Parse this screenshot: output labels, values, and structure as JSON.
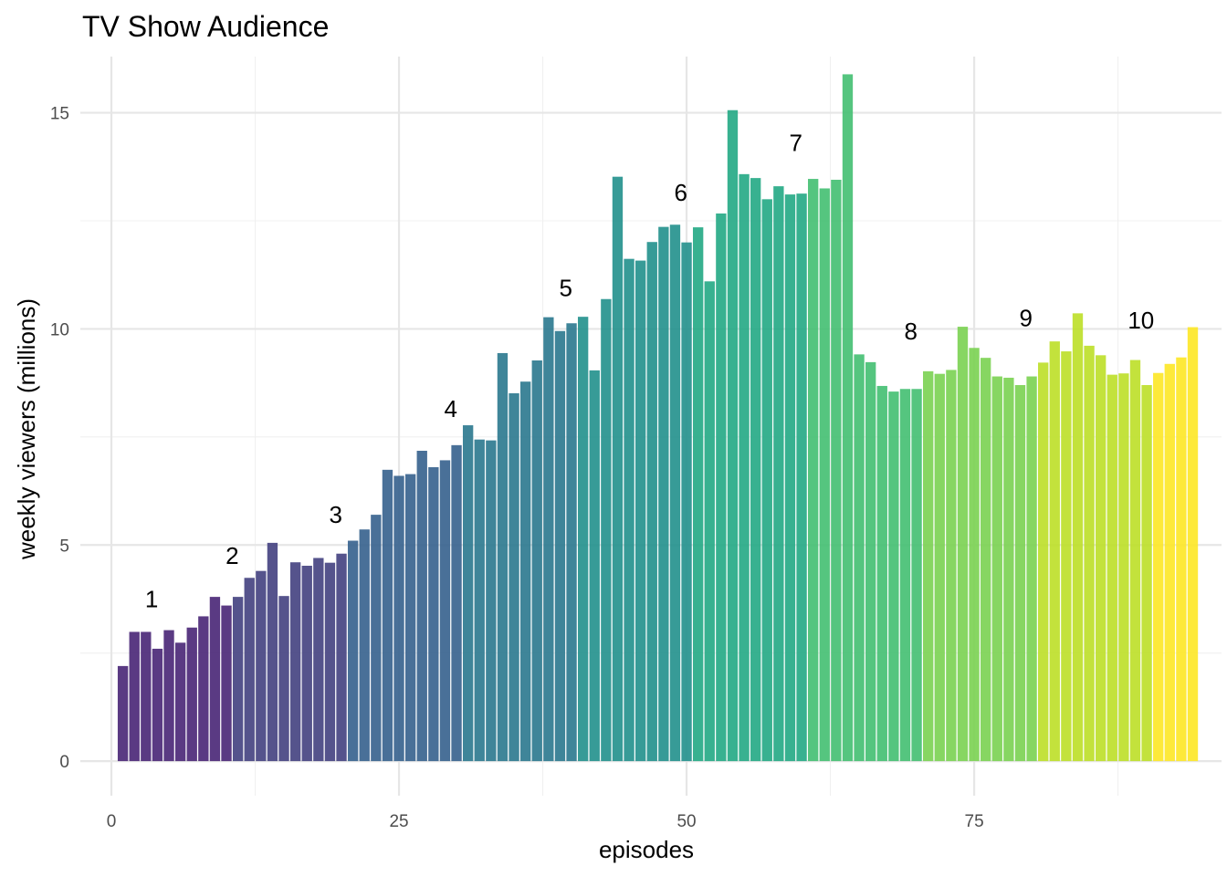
{
  "chart_data": {
    "type": "bar",
    "title": "TV Show Audience",
    "xlabel": "episodes",
    "ylabel": "weekly viewers (millions)",
    "xlim": [
      -2.7,
      96.5
    ],
    "ylim": [
      -0.8,
      16.3
    ],
    "xticks": [
      0,
      25,
      50,
      75
    ],
    "xminor": [
      12.5,
      37.5,
      62.5,
      87.5
    ],
    "yticks": [
      0,
      5,
      10,
      15
    ],
    "yminor": [
      2.5,
      7.5,
      12.5
    ],
    "grid": true,
    "legend": "none",
    "x": [
      1,
      2,
      3,
      4,
      5,
      6,
      7,
      8,
      9,
      10,
      11,
      12,
      13,
      14,
      15,
      16,
      17,
      18,
      19,
      20,
      21,
      22,
      23,
      24,
      25,
      26,
      27,
      28,
      29,
      30,
      31,
      32,
      33,
      34,
      35,
      36,
      37,
      38,
      39,
      40,
      41,
      42,
      43,
      44,
      45,
      46,
      47,
      48,
      49,
      50,
      51,
      52,
      53,
      54,
      55,
      56,
      57,
      58,
      59,
      60,
      61,
      62,
      63,
      64,
      65,
      66,
      67,
      68,
      69,
      70,
      71,
      72,
      73,
      74,
      75,
      76,
      77,
      78,
      79,
      80,
      81,
      82,
      83,
      84,
      85,
      86,
      87,
      88,
      89,
      90,
      91,
      92,
      93,
      94
    ],
    "values": [
      2.2,
      2.99,
      2.99,
      2.6,
      3.03,
      2.74,
      3.09,
      3.35,
      3.8,
      3.6,
      3.8,
      4.24,
      4.4,
      5.05,
      3.82,
      4.6,
      4.52,
      4.7,
      4.59,
      4.8,
      5.1,
      5.36,
      5.7,
      6.74,
      6.6,
      6.64,
      7.18,
      6.8,
      6.96,
      7.31,
      7.77,
      7.44,
      7.42,
      9.44,
      8.51,
      8.78,
      9.27,
      10.27,
      9.95,
      10.13,
      10.28,
      9.04,
      10.69,
      13.52,
      11.62,
      11.58,
      12.01,
      12.36,
      12.41,
      12.0,
      12.35,
      11.1,
      12.67,
      15.06,
      13.58,
      13.49,
      13.0,
      13.3,
      13.11,
      13.13,
      13.47,
      13.25,
      13.45,
      15.89,
      9.41,
      9.23,
      8.68,
      8.55,
      8.61,
      8.61,
      9.02,
      8.96,
      9.05,
      10.05,
      9.56,
      9.33,
      8.9,
      8.87,
      8.7,
      8.9,
      9.22,
      9.71,
      9.48,
      10.36,
      9.61,
      9.39,
      8.94,
      8.97,
      9.28,
      8.7,
      8.98,
      9.19,
      9.34,
      10.04
    ],
    "seasons": [
      1,
      1,
      1,
      1,
      1,
      1,
      1,
      1,
      1,
      1,
      2,
      2,
      2,
      2,
      2,
      2,
      2,
      2,
      2,
      2,
      3,
      3,
      3,
      3,
      3,
      3,
      3,
      3,
      3,
      3,
      4,
      4,
      4,
      4,
      4,
      4,
      4,
      4,
      4,
      4,
      5,
      5,
      5,
      5,
      5,
      5,
      5,
      5,
      5,
      5,
      6,
      6,
      6,
      6,
      6,
      6,
      6,
      6,
      6,
      6,
      7,
      7,
      7,
      7,
      7,
      7,
      7,
      7,
      7,
      7,
      8,
      8,
      8,
      8,
      8,
      8,
      8,
      8,
      8,
      8,
      9,
      9,
      9,
      9,
      9,
      9,
      9,
      9,
      9,
      9,
      10,
      10,
      10,
      10
    ],
    "season_labels": [
      {
        "text": "1",
        "x": 3.5,
        "y": 3.75
      },
      {
        "text": "2",
        "x": 10.5,
        "y": 4.75
      },
      {
        "text": "3",
        "x": 19.5,
        "y": 5.7
      },
      {
        "text": "4",
        "x": 29.5,
        "y": 8.15
      },
      {
        "text": "5",
        "x": 39.5,
        "y": 10.95
      },
      {
        "text": "6",
        "x": 49.5,
        "y": 13.15
      },
      {
        "text": "7",
        "x": 59.5,
        "y": 14.3
      },
      {
        "text": "8",
        "x": 69.5,
        "y": 9.95
      },
      {
        "text": "9",
        "x": 79.5,
        "y": 10.25
      },
      {
        "text": "10",
        "x": 89.5,
        "y": 10.2
      }
    ],
    "season_colors": [
      "#482576",
      "#43407f",
      "#35608d",
      "#2a788e",
      "#21908c",
      "#22a884",
      "#43bf71",
      "#7ad151",
      "#bcdf27",
      "#fde725"
    ]
  }
}
